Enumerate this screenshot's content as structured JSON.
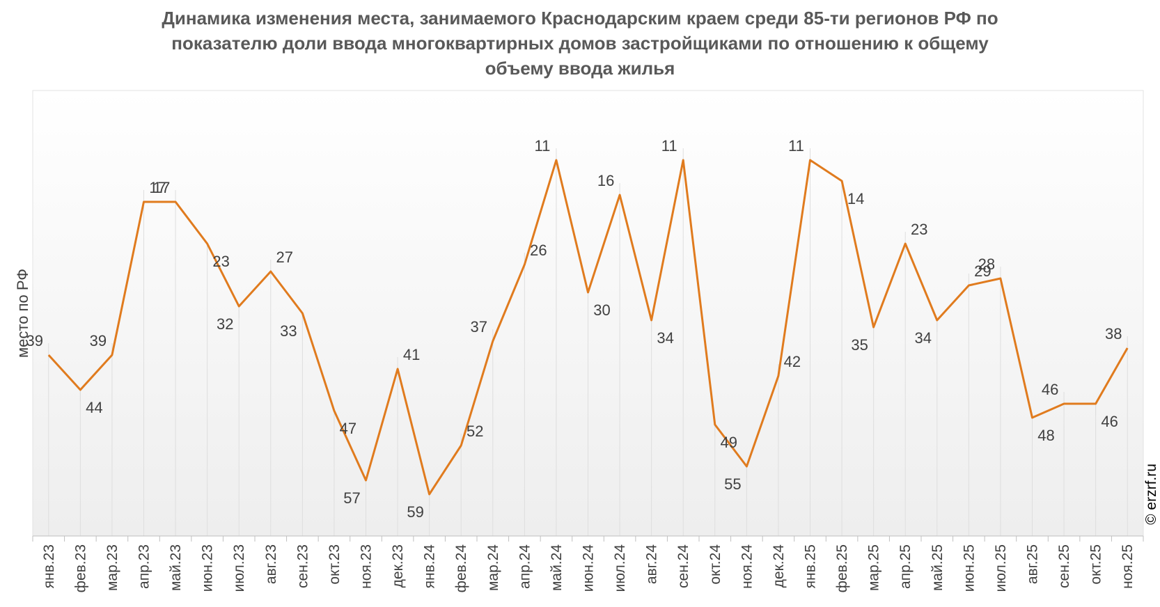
{
  "chart_data": {
    "type": "line",
    "title_lines": [
      "Динамика изменения места, занимаемого Краснодарским краем среди 85-ти регионов РФ по",
      "показателю доли ввода многоквартирных домов застройщиками по отношению к общему",
      "объему ввода жилья"
    ],
    "ylabel": "место по РФ",
    "y_reversed": true,
    "ylim": [
      1,
      65
    ],
    "grid": "vertical",
    "categories": [
      "янв.23",
      "фев.23",
      "мар.23",
      "апр.23",
      "май.23",
      "июн.23",
      "июл.23",
      "авг.23",
      "сен.23",
      "окт.23",
      "ноя.23",
      "дек.23",
      "янв.24",
      "фев.24",
      "мар.24",
      "апр.24",
      "май.24",
      "июн.24",
      "июл.24",
      "авг.24",
      "сен.24",
      "окт.24",
      "ноя.24",
      "дек.24",
      "янв.25",
      "фев.25",
      "мар.25",
      "апр.25",
      "май.25",
      "июн.25",
      "июл.25",
      "авг.25",
      "сен.25",
      "окт.25",
      "ноя.25"
    ],
    "values": [
      39,
      44,
      39,
      17,
      17,
      23,
      32,
      27,
      33,
      47,
      57,
      41,
      59,
      52,
      37,
      26,
      11,
      30,
      16,
      34,
      11,
      49,
      55,
      42,
      11,
      14,
      35,
      23,
      34,
      29,
      28,
      48,
      46,
      46,
      38
    ],
    "line_color": "#e07b1e",
    "copyright": "© erzrf.ru"
  }
}
